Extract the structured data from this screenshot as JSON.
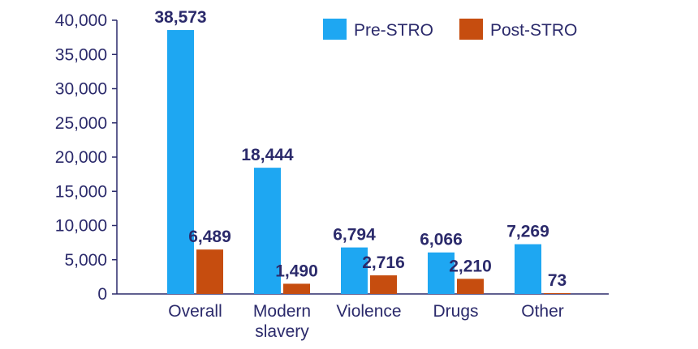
{
  "chart_data": {
    "type": "bar",
    "categories": [
      [
        "Overall"
      ],
      [
        "Modern",
        "slavery"
      ],
      [
        "Violence"
      ],
      [
        "Drugs"
      ],
      [
        "Other"
      ]
    ],
    "series": [
      {
        "name": "Pre-STRO",
        "color": "#1ea7f2",
        "values": [
          38573,
          18444,
          6794,
          6066,
          7269
        ],
        "labels": [
          "38,573",
          "18,444",
          "6,794",
          "6,066",
          "7,269"
        ]
      },
      {
        "name": "Post-STRO",
        "color": "#c64d0f",
        "values": [
          6489,
          1490,
          2716,
          2210,
          73
        ],
        "labels": [
          "6,489",
          "1,490",
          "2,716",
          "2,210",
          "73"
        ]
      }
    ],
    "ylim": [
      0,
      40000
    ],
    "yticks": [
      0,
      5000,
      10000,
      15000,
      20000,
      25000,
      30000,
      35000,
      40000
    ],
    "ytick_labels": [
      "0",
      "5,000",
      "10,000",
      "15,000",
      "20,000",
      "25,000",
      "30,000",
      "35,000",
      "40,000"
    ],
    "legend_position": "top-right",
    "grid": false
  }
}
